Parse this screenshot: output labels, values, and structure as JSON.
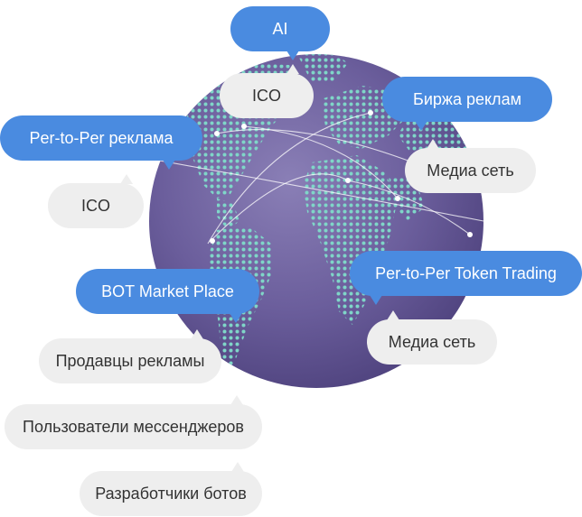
{
  "colors": {
    "accent_blue": "#4a8be0",
    "bubble_gray": "#eeeeee",
    "globe": "#6b5e9c",
    "land_dots": "#7fd6c8"
  },
  "bubbles": [
    {
      "label": "AI",
      "style": "blue"
    },
    {
      "label": "ICO",
      "style": "gray"
    },
    {
      "label": "Биржа реклам",
      "style": "blue"
    },
    {
      "label": "Per-to-Per реклама",
      "style": "blue"
    },
    {
      "label": "Медиа сеть",
      "style": "gray"
    },
    {
      "label": "ICO",
      "style": "gray"
    },
    {
      "label": "Per-to-Per Token Trading",
      "style": "blue"
    },
    {
      "label": "BOT Market Place",
      "style": "blue"
    },
    {
      "label": "Медиа сеть",
      "style": "gray"
    },
    {
      "label": "Продавцы рекламы",
      "style": "gray"
    },
    {
      "label": "Пользователи мессенджеров",
      "style": "gray"
    },
    {
      "label": "Разработчики ботов",
      "style": "gray"
    }
  ]
}
